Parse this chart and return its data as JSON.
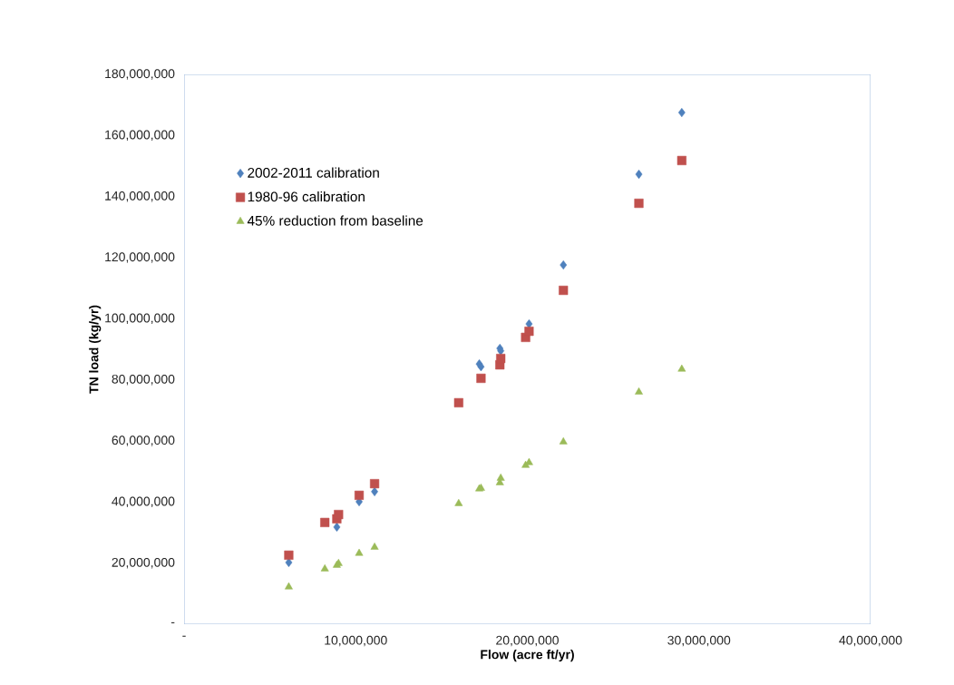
{
  "chart_data": {
    "type": "scatter",
    "xlabel": "Flow (acre ft/yr)",
    "ylabel": "TN load (kg/yr)",
    "x": [
      6100000,
      8200000,
      8900000,
      9000000,
      10200000,
      11100000,
      16000000,
      17200000,
      17300000,
      18400000,
      18450000,
      19900000,
      20100000,
      22100000,
      26500000,
      29000000
    ],
    "series": [
      {
        "name": "2002-2011 calibration",
        "color": "#4f81bd",
        "marker": "diamond",
        "values": [
          20200000,
          null,
          31800000,
          null,
          40100000,
          43400000,
          null,
          85200000,
          84300000,
          90300000,
          89500000,
          null,
          98300000,
          117600000,
          147300000,
          167500000
        ]
      },
      {
        "name": "1980-96 calibration",
        "color": "#c0504d",
        "marker": "square",
        "values": [
          22600000,
          33300000,
          34500000,
          35900000,
          42200000,
          46000000,
          72500000,
          null,
          80500000,
          84900000,
          87000000,
          93900000,
          95900000,
          109300000,
          137800000,
          151800000
        ]
      },
      {
        "name": "45% reduction from baseline",
        "color": "#9bbb59",
        "marker": "triangle",
        "values": [
          12200000,
          18100000,
          19300000,
          19900000,
          23200000,
          25200000,
          39500000,
          44300000,
          44500000,
          46300000,
          47800000,
          52000000,
          52900000,
          59700000,
          76000000,
          83500000
        ]
      }
    ],
    "xlim": [
      0,
      40000000
    ],
    "xticks": [
      {
        "value": 0,
        "label": "-"
      },
      {
        "value": 10000000,
        "label": "10,000,000"
      },
      {
        "value": 20000000,
        "label": "20,000,000"
      },
      {
        "value": 30000000,
        "label": "30,000,000"
      },
      {
        "value": 40000000,
        "label": "40,000,000"
      }
    ],
    "ylim": [
      0,
      180000000
    ],
    "yticks": [
      {
        "value": 0,
        "label": "-"
      },
      {
        "value": 20000000,
        "label": "20,000,000"
      },
      {
        "value": 40000000,
        "label": "40,000,000"
      },
      {
        "value": 60000000,
        "label": "60,000,000"
      },
      {
        "value": 80000000,
        "label": "80,000,000"
      },
      {
        "value": 100000000,
        "label": "100,000,000"
      },
      {
        "value": 120000000,
        "label": "120,000,000"
      },
      {
        "value": 140000000,
        "label": "140,000,000"
      },
      {
        "value": 160000000,
        "label": "160,000,000"
      },
      {
        "value": 180000000,
        "label": "180,000,000"
      }
    ],
    "legend": "top left",
    "grid": false
  }
}
